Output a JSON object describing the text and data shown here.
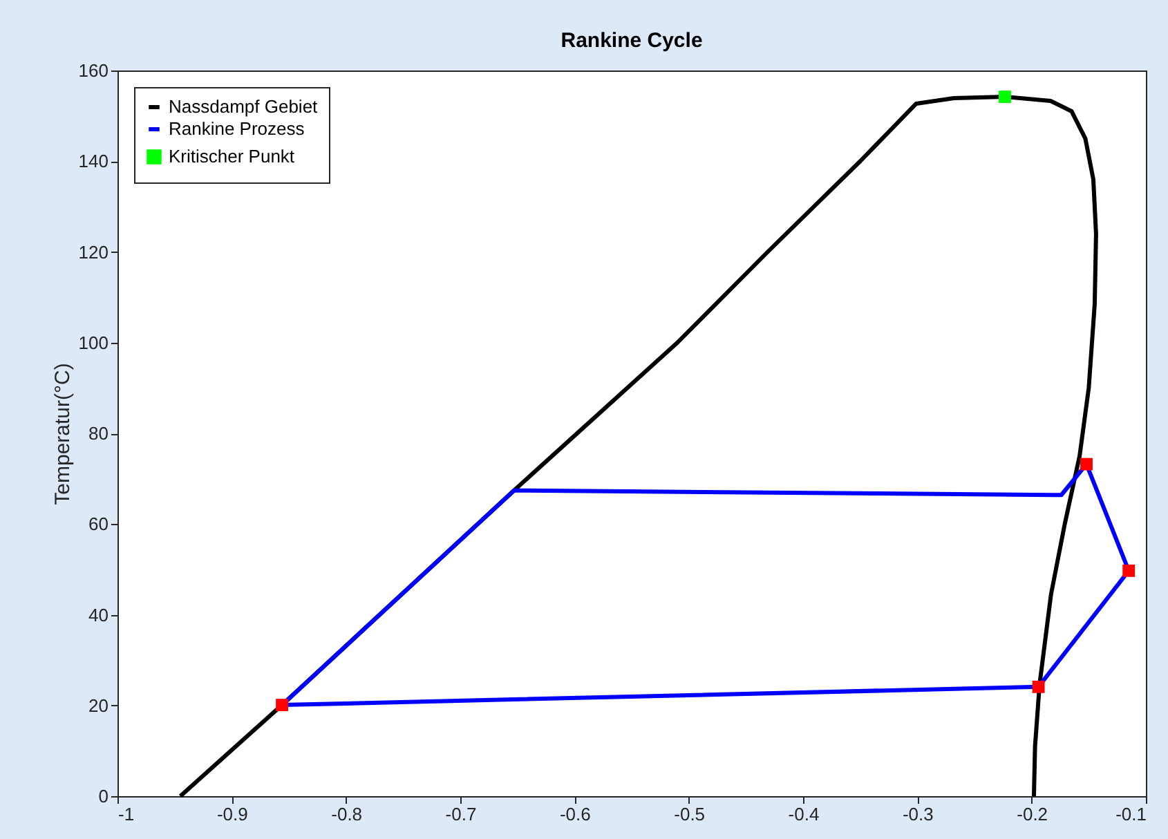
{
  "chart_data": {
    "type": "line",
    "title": "Rankine Cycle",
    "ylabel": "Temperatur(°C)",
    "xlim": [
      -1,
      -0.1
    ],
    "xticks": [
      -1,
      -0.9,
      -0.8,
      -0.7,
      -0.6,
      -0.5,
      -0.4,
      -0.3,
      -0.2,
      -0.1
    ],
    "ylim": [
      0,
      160
    ],
    "yticks": [
      0,
      20,
      40,
      60,
      80,
      100,
      120,
      140,
      160
    ],
    "grid": false,
    "legend": "top left",
    "series": [
      {
        "name": "Nassdampf Gebiet",
        "color": "#000000",
        "x": [
          -0.945,
          -0.856,
          -0.653,
          -0.51,
          -0.431,
          -0.35,
          -0.301,
          -0.268,
          -0.2234,
          -0.1835,
          -0.165,
          -0.153,
          -0.146,
          -0.1436,
          -0.1448,
          -0.15,
          -0.158,
          -0.171,
          -0.183,
          -0.193,
          -0.197,
          -0.198
        ],
        "values": [
          0,
          20.1,
          67.4,
          100,
          120,
          140,
          152.7,
          153.9,
          154.2,
          153.3,
          151,
          145,
          136,
          124,
          108.5,
          90,
          75,
          60,
          44.5,
          24.7,
          11,
          0
        ]
      },
      {
        "name": "Rankine Prozess",
        "color": "#0000ff",
        "x": [
          -0.194,
          -0.856,
          -0.653,
          -0.174,
          -0.152,
          -0.115
        ],
        "values": [
          24.1,
          20.1,
          67.4,
          66.4,
          73.2,
          49.7
        ]
      },
      {
        "color": "#0000ff",
        "x": [
          -0.115,
          -0.194
        ],
        "values": [
          49.7,
          24.1
        ]
      },
      {
        "type": "scatter",
        "marker": "square",
        "color": "#ff0000",
        "x": [
          -0.856,
          -0.152,
          -0.115,
          -0.194
        ],
        "values": [
          20.1,
          73.2,
          49.7,
          24.1
        ]
      },
      {
        "name": "Kritischer Punkt",
        "type": "scatter",
        "marker": "square",
        "color": "#00ff00",
        "x": [
          -0.2234
        ],
        "values": [
          154.2
        ]
      }
    ]
  }
}
